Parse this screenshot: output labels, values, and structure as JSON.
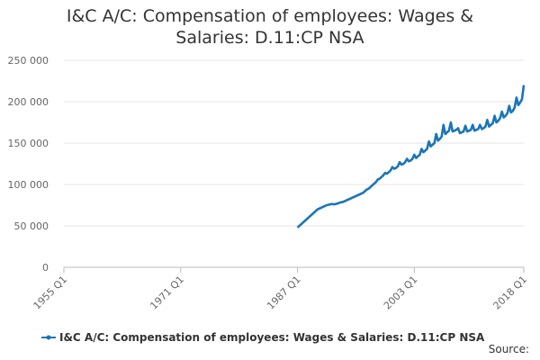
{
  "chart_data": {
    "type": "line",
    "title": "I&C A/C: Compensation of employees: Wages & Salaries: D.11:CP NSA",
    "source_label": "Source:",
    "xlim": [
      1955,
      2018
    ],
    "xticks": [
      {
        "value": 1955,
        "label": "1955 Q1"
      },
      {
        "value": 1971,
        "label": "1971 Q1"
      },
      {
        "value": 1987,
        "label": "1987 Q1"
      },
      {
        "value": 2003,
        "label": "2003 Q1"
      },
      {
        "value": 2018,
        "label": "2018 Q1"
      }
    ],
    "ylim": [
      0,
      250000
    ],
    "yticks": [
      0,
      {
        "value": 50000,
        "label": "50 000"
      },
      {
        "value": 100000,
        "label": "100 000"
      },
      {
        "value": 150000,
        "label": "150 000"
      },
      {
        "value": 200000,
        "label": "200 000"
      },
      {
        "value": 250000,
        "label": "250 000"
      }
    ],
    "grid": true,
    "x": [
      1987,
      1987.25,
      1987.5,
      1987.75,
      1988,
      1988.25,
      1988.5,
      1988.75,
      1989,
      1989.25,
      1989.5,
      1989.75,
      1990,
      1990.25,
      1990.5,
      1990.75,
      1991,
      1991.25,
      1991.5,
      1991.75,
      1992,
      1992.25,
      1992.5,
      1992.75,
      1993,
      1993.25,
      1993.5,
      1993.75,
      1994,
      1994.25,
      1994.5,
      1994.75,
      1995,
      1995.25,
      1995.5,
      1995.75,
      1996,
      1996.25,
      1996.5,
      1996.75,
      1997,
      1997.25,
      1997.5,
      1997.75,
      1998,
      1998.25,
      1998.5,
      1998.75,
      1999,
      1999.25,
      1999.5,
      1999.75,
      2000,
      2000.25,
      2000.5,
      2000.75,
      2001,
      2001.25,
      2001.5,
      2001.75,
      2002,
      2002.25,
      2002.5,
      2002.75,
      2003,
      2003.25,
      2003.5,
      2003.75,
      2004,
      2004.25,
      2004.5,
      2004.75,
      2005,
      2005.25,
      2005.5,
      2005.75,
      2006,
      2006.25,
      2006.5,
      2006.75,
      2007,
      2007.25,
      2007.5,
      2007.75,
      2008,
      2008.25,
      2008.5,
      2008.75,
      2009,
      2009.25,
      2009.5,
      2009.75,
      2010,
      2010.25,
      2010.5,
      2010.75,
      2011,
      2011.25,
      2011.5,
      2011.75,
      2012,
      2012.25,
      2012.5,
      2012.75,
      2013,
      2013.25,
      2013.5,
      2013.75,
      2014,
      2014.25,
      2014.5,
      2014.75,
      2015,
      2015.25,
      2015.5,
      2015.75,
      2016,
      2016.25,
      2016.5,
      2016.75,
      2017,
      2017.25,
      2017.5,
      2017.75,
      2018
    ],
    "series": [
      {
        "name": "I&C A/C: Compensation of employees: Wages & Salaries: D.11:CP NSA",
        "color": "#1a75b8",
        "values": [
          48000,
          50000,
          52000,
          54000,
          56000,
          58000,
          60000,
          62000,
          64000,
          66000,
          68000,
          70000,
          71000,
          72000,
          73000,
          74000,
          75000,
          75500,
          76000,
          76500,
          76000,
          76500,
          77000,
          78000,
          78500,
          79000,
          80000,
          81000,
          82000,
          83000,
          84000,
          85000,
          86000,
          87000,
          88000,
          89000,
          90000,
          92000,
          94000,
          95000,
          97000,
          99000,
          101000,
          103000,
          106000,
          107000,
          109000,
          111000,
          114000,
          113000,
          115000,
          117000,
          121000,
          119000,
          120000,
          122000,
          127000,
          124000,
          125000,
          127000,
          131000,
          128000,
          129000,
          131000,
          136000,
          132000,
          134000,
          136000,
          143000,
          139000,
          141000,
          143000,
          152000,
          146000,
          148000,
          150000,
          161000,
          153000,
          155000,
          158000,
          172000,
          161000,
          163000,
          165000,
          175000,
          164000,
          165000,
          166000,
          168000,
          162000,
          163000,
          164000,
          171000,
          164000,
          165000,
          166000,
          172000,
          165000,
          166000,
          167000,
          172000,
          167000,
          168000,
          170000,
          178000,
          170000,
          172000,
          174000,
          183000,
          175000,
          177000,
          180000,
          188000,
          181000,
          183000,
          186000,
          195000,
          187000,
          189000,
          193000,
          205000,
          196000,
          199000,
          203000,
          220000
        ]
      }
    ]
  }
}
